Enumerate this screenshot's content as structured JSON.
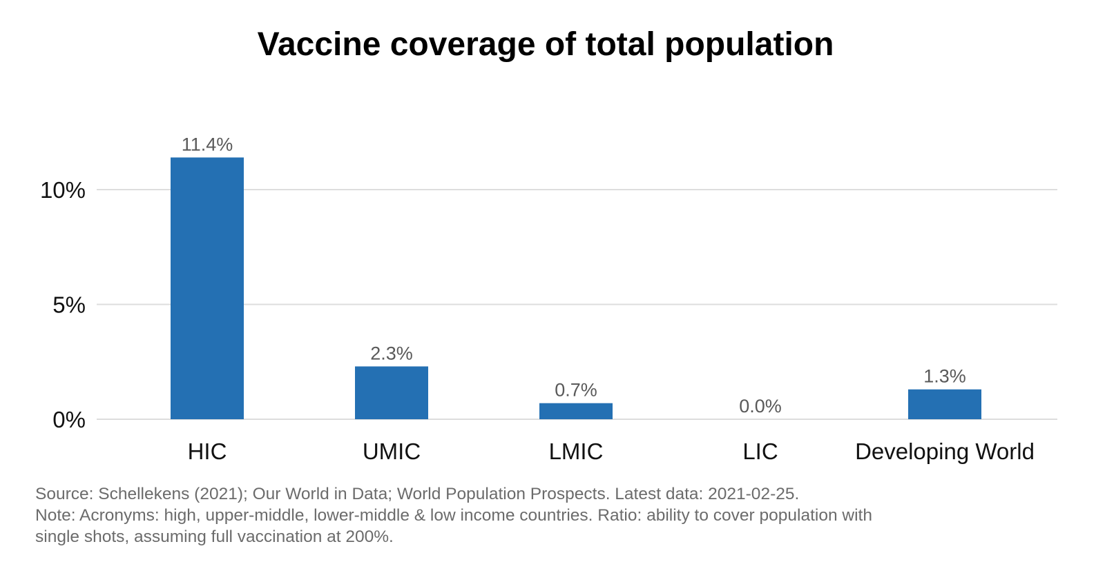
{
  "chart_data": {
    "type": "bar",
    "title": "Vaccine coverage of total population",
    "xlabel": "",
    "ylabel": "",
    "categories": [
      "HIC",
      "UMIC",
      "LMIC",
      "LIC",
      "Developing World"
    ],
    "values": [
      11.4,
      2.3,
      0.7,
      0.0,
      1.3
    ],
    "data_labels": [
      "11.4%",
      "2.3%",
      "0.7%",
      "0.0%",
      "1.3%"
    ],
    "ylim": [
      0,
      11.4
    ],
    "yticks": [
      0,
      5,
      10
    ],
    "ytick_labels": [
      "0%",
      "5%",
      "10%"
    ],
    "grid": true,
    "bar_color": "#2470b3",
    "legend": "none"
  },
  "caption": {
    "source": "Source: Schellekens (2021); Our World in Data; World Population Prospects. Latest data: 2021-02-25.",
    "note_line1": "Note: Acronyms: high, upper-middle, lower-middle & low income countries. Ratio: ability to cover population with",
    "note_line2": "single shots, assuming full vaccination at 200%."
  }
}
